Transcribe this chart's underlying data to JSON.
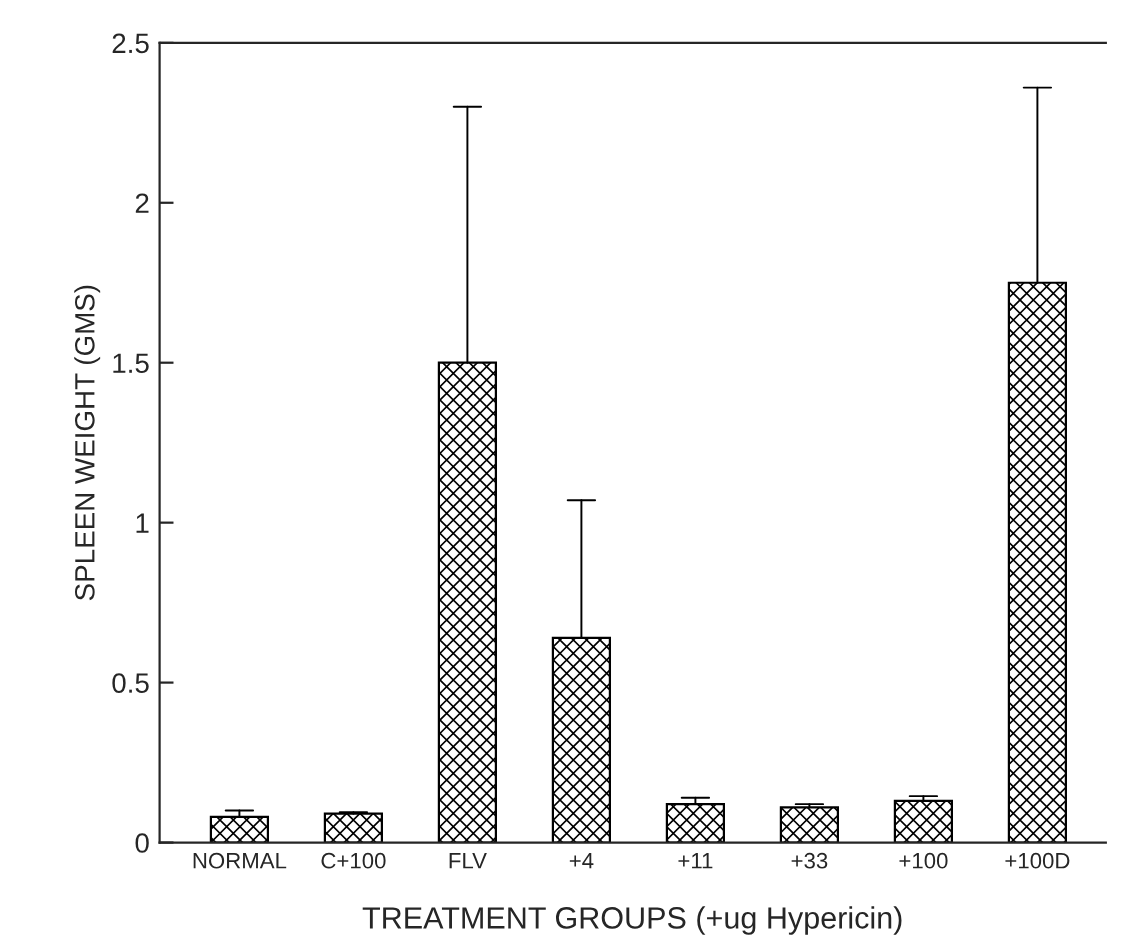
{
  "chart_data": {
    "type": "bar",
    "xlabel": "TREATMENT GROUPS (+ug Hypericin)",
    "ylabel": "SPLEEN WEIGHT (GMS)",
    "categories": [
      "NORMAL",
      "C+100",
      "FLV",
      "+4",
      "+11",
      "+33",
      "+100",
      "+100D"
    ],
    "values": [
      0.08,
      0.09,
      1.5,
      0.64,
      0.12,
      0.11,
      0.13,
      1.75
    ],
    "errors": [
      [
        0.08,
        0.1
      ],
      [
        0.09,
        0.095
      ],
      [
        1.5,
        2.3
      ],
      [
        0.64,
        1.07
      ],
      [
        0.12,
        0.14
      ],
      [
        0.11,
        0.12
      ],
      [
        0.13,
        0.145
      ],
      [
        1.75,
        2.36
      ]
    ],
    "color": "#000000",
    "ylim": [
      0,
      2.5
    ],
    "yticks": [
      0,
      0.5,
      1,
      1.5,
      2,
      2.5
    ],
    "grid": false
  }
}
